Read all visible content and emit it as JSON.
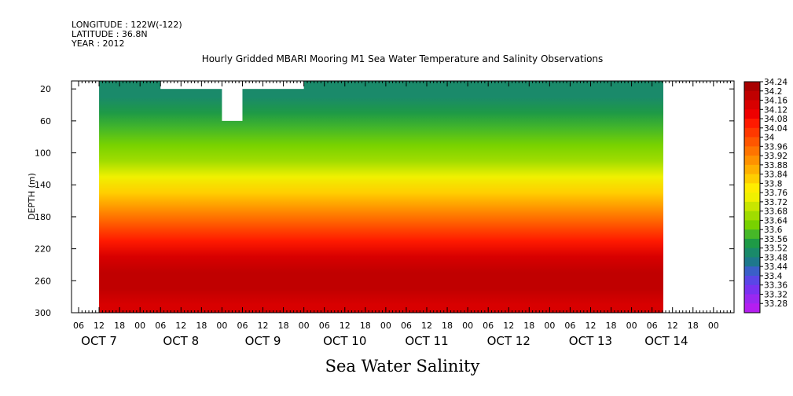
{
  "header": {
    "longitude": "LONGITUDE : 122W(-122)",
    "latitude": "LATITUDE : 36.8N",
    "year": "YEAR : 2012"
  },
  "chart_data": {
    "type": "heatmap",
    "title": "Hourly Gridded MBARI Mooring M1 Sea Water Temperature and Salinity Observations",
    "caption": "Sea Water Salinity",
    "ylabel": "DEPTH (m)",
    "xlabel": "",
    "y_ticks": [
      20,
      60,
      100,
      140,
      180,
      220,
      260,
      300
    ],
    "ylim": [
      300,
      10
    ],
    "x_hour_ticks": [
      "06",
      "12",
      "18",
      "00",
      "06",
      "12",
      "18",
      "00",
      "06",
      "12",
      "18",
      "00",
      "06",
      "12",
      "18",
      "00",
      "06",
      "12",
      "18",
      "00",
      "06",
      "12",
      "18",
      "00",
      "06",
      "12",
      "18",
      "00",
      "06",
      "12",
      "18",
      "00"
    ],
    "x_day_labels": [
      "OCT  7",
      "OCT  8",
      "OCT  9",
      "OCT 10",
      "OCT 11",
      "OCT 12",
      "OCT 13",
      "OCT 14"
    ],
    "colorbar_levels": [
      "34.24",
      "34.2",
      "34.16",
      "34.12",
      "34.08",
      "34.04",
      "34",
      "33.96",
      "33.92",
      "33.88",
      "33.84",
      "33.8",
      "33.76",
      "33.72",
      "33.68",
      "33.64",
      "33.6",
      "33.56",
      "33.52",
      "33.48",
      "33.44",
      "33.4",
      "33.36",
      "33.32",
      "33.28"
    ],
    "colorbar_colors": [
      "#a80000",
      "#c00000",
      "#d80000",
      "#ee0000",
      "#ff1a00",
      "#ff3800",
      "#ff5600",
      "#ff7400",
      "#ff9200",
      "#ffb000",
      "#ffce00",
      "#ffec00",
      "#f0f000",
      "#c8e600",
      "#a0dc00",
      "#78d200",
      "#46b828",
      "#1e9a46",
      "#1a8a6a",
      "#1e788c",
      "#3a5fc8",
      "#5a46e6",
      "#7a32f0",
      "#9a28f0",
      "#b41ef0"
    ],
    "salinity_profile": [
      {
        "depth": 10,
        "value": 33.48
      },
      {
        "depth": 30,
        "value": 33.5
      },
      {
        "depth": 50,
        "value": 33.54
      },
      {
        "depth": 70,
        "value": 33.58
      },
      {
        "depth": 90,
        "value": 33.62
      },
      {
        "depth": 110,
        "value": 33.66
      },
      {
        "depth": 130,
        "value": 33.72
      },
      {
        "depth": 150,
        "value": 33.8
      },
      {
        "depth": 170,
        "value": 33.88
      },
      {
        "depth": 190,
        "value": 33.98
      },
      {
        "depth": 210,
        "value": 34.06
      },
      {
        "depth": 230,
        "value": 34.12
      },
      {
        "depth": 250,
        "value": 34.16
      },
      {
        "depth": 270,
        "value": 34.16
      },
      {
        "depth": 290,
        "value": 34.14
      },
      {
        "depth": 300,
        "value": 34.13
      }
    ],
    "data_start": "OCT 7 12:00",
    "data_end": "OCT 14 06:00",
    "missing_data": [
      {
        "from": "OCT 8 06:00",
        "to": "OCT 10 00:00",
        "depth_from": 10,
        "depth_to": 20
      },
      {
        "from": "OCT 9 00:00",
        "to": "OCT 9 06:00",
        "depth_from": 10,
        "depth_to": 60
      }
    ]
  }
}
